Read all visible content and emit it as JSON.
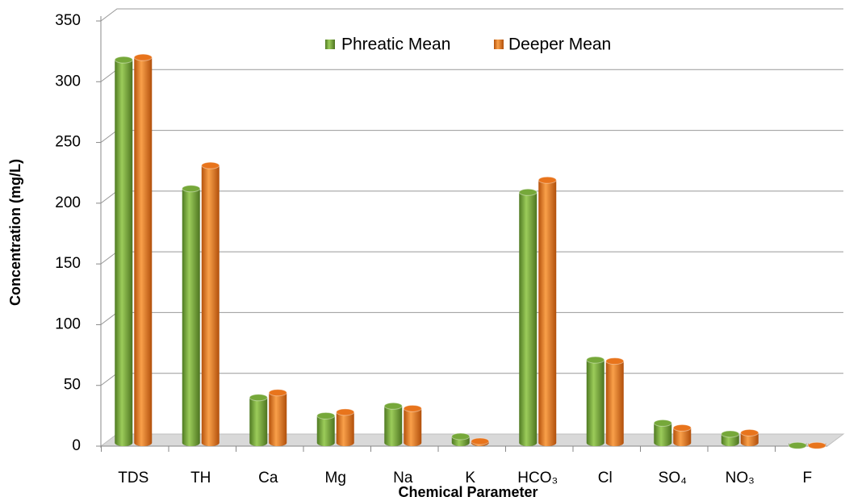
{
  "chart_data": {
    "type": "bar3d",
    "x_label": "Chemical Parameter",
    "y_label": "Concentration (mg/L)",
    "categories": [
      "TDS",
      "TH",
      "Ca",
      "Mg",
      "Na",
      "K",
      "HCO₃",
      "Cl",
      "SO₄",
      "NO₃",
      "F"
    ],
    "series": [
      {
        "name": "Phreatic Mean",
        "color": "#76a83a",
        "values": [
          318,
          212,
          40,
          25,
          33,
          8,
          209,
          71,
          19,
          10,
          0.5
        ]
      },
      {
        "name": "Deeper Mean",
        "color": "#e8741c",
        "values": [
          320,
          231,
          44,
          28,
          31,
          4,
          219,
          70,
          15,
          11,
          0.5
        ]
      }
    ],
    "ylim": [
      0,
      350
    ],
    "yticks": [
      0,
      50,
      100,
      150,
      200,
      250,
      300,
      350
    ],
    "grid": true,
    "legend": "top"
  }
}
